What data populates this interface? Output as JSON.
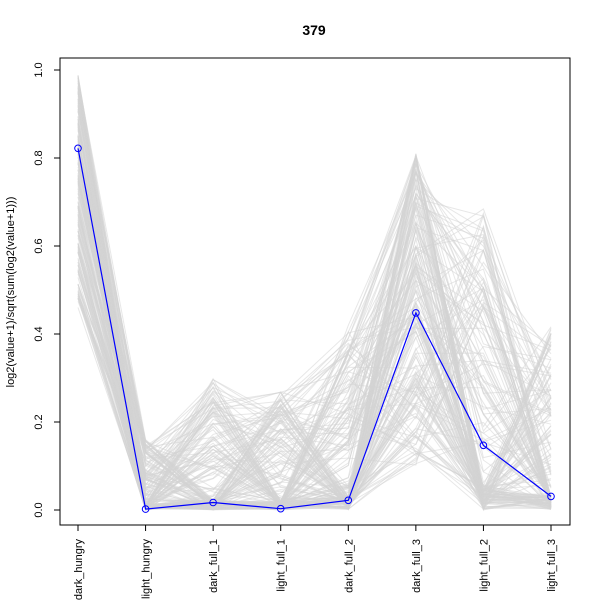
{
  "chart_data": {
    "type": "line",
    "title": "379",
    "xlabel": "",
    "ylabel": "log2(value+1)/sqrt(sum(log2(value+1)))",
    "categories": [
      "dark_hungry",
      "light_hungry",
      "dark_full_1",
      "light_full_1",
      "dark_full_2",
      "dark_full_3",
      "light_full_2",
      "light_full_3"
    ],
    "ylim": [
      0,
      1.0
    ],
    "yticks": [
      0.0,
      0.2,
      0.4,
      0.6,
      0.8,
      1.0
    ],
    "ytick_labels": [
      "0.0",
      "0.2",
      "0.4",
      "0.6",
      "0.8",
      "1.0"
    ],
    "grid": false,
    "highlight_series": {
      "values": [
        0.822,
        0.002,
        0.017,
        0.003,
        0.022,
        0.448,
        0.147,
        0.031
      ],
      "color": "#0000ff",
      "marker": "open-circle"
    },
    "background_series": {
      "color": "#d3d3d3",
      "description_count": 200,
      "ranges": [
        [
          0.46,
          0.99
        ],
        [
          0.0,
          0.16
        ],
        [
          0.0,
          0.3
        ],
        [
          0.0,
          0.27
        ],
        [
          0.0,
          0.42
        ],
        [
          0.1,
          0.81
        ],
        [
          0.0,
          0.69
        ],
        [
          0.0,
          0.42
        ]
      ]
    }
  }
}
